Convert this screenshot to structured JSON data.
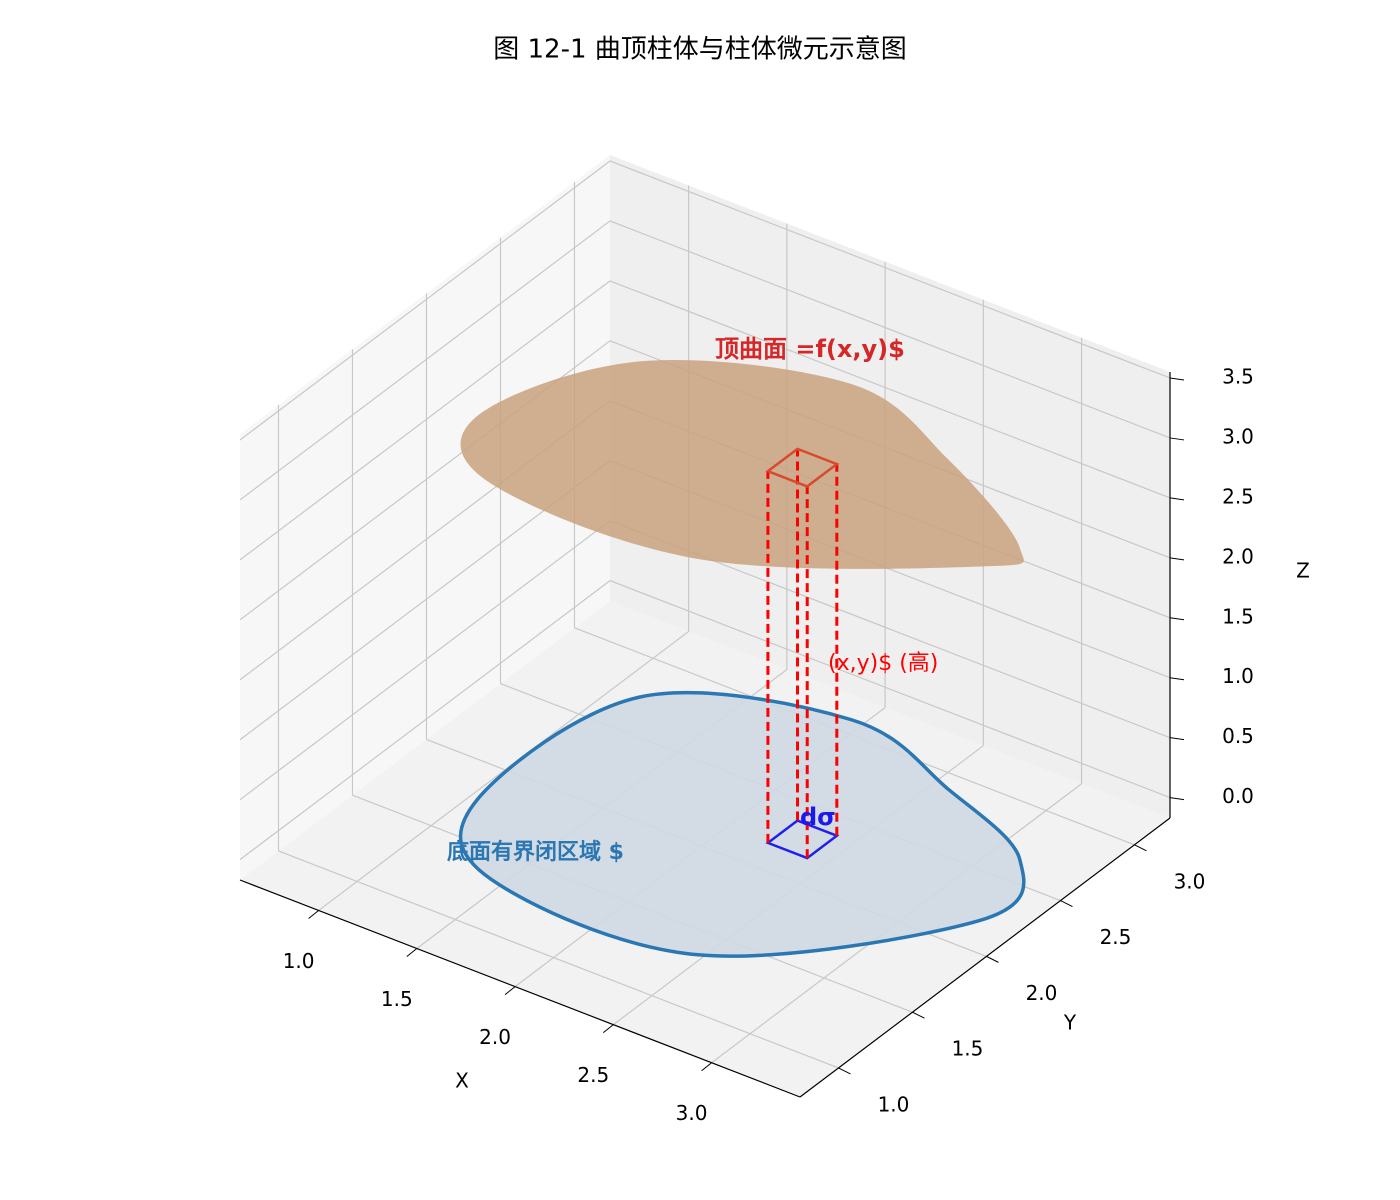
{
  "chart_data": {
    "type": "surface3d",
    "title": "图 12-1 曲顶柱体与柱体微元示意图",
    "xlabel": "X",
    "ylabel": "Y",
    "zlabel": "Z",
    "xlim": [
      0.6,
      3.45
    ],
    "ylim": [
      0.74,
      3.24
    ],
    "zlim": [
      -0.17,
      3.55
    ],
    "xticks": [
      {
        "value": 1,
        "label": "1.0"
      },
      {
        "value": 1.5,
        "label": "1.5"
      },
      {
        "value": 2,
        "label": "2.0"
      },
      {
        "value": 2.5,
        "label": "2.5"
      },
      {
        "value": 3,
        "label": "3.0"
      }
    ],
    "yticks": [
      {
        "value": 1,
        "label": "1.0"
      },
      {
        "value": 1.5,
        "label": "1.5"
      },
      {
        "value": 2,
        "label": "2.0"
      },
      {
        "value": 2.5,
        "label": "2.5"
      },
      {
        "value": 3,
        "label": "3.0"
      }
    ],
    "zticks": [
      {
        "value": 0,
        "label": "0.0"
      },
      {
        "value": 0.5,
        "label": "0.5"
      },
      {
        "value": 1,
        "label": "1.0"
      },
      {
        "value": 1.5,
        "label": "1.5"
      },
      {
        "value": 2,
        "label": "2.0"
      },
      {
        "value": 2.5,
        "label": "2.5"
      },
      {
        "value": 3,
        "label": "3.0"
      },
      {
        "value": 3.5,
        "label": "3.5"
      }
    ],
    "grid": true,
    "boundary": {
      "x": [
        1.13,
        1.53,
        2.57,
        3.36,
        3.22,
        2.67,
        2.03,
        1.22
      ],
      "y": [
        1.64,
        1.2,
        1.23,
        2.08,
        2.53,
        2.78,
        2.97,
        2.62
      ],
      "color": "#2a77b4",
      "fill": "#cfd8e2"
    },
    "surface_z": [
      3.2,
      3.3,
      3.3,
      2.95,
      2.6,
      2.75,
      2.8,
      2.8
    ],
    "surface_color": "#c9a27f",
    "element": {
      "x": [
        2.3,
        2.5
      ],
      "y": [
        2.05,
        2.25
      ],
      "z_top": 3.1
    },
    "annotations": [
      "顶曲面 =f(x,y)$",
      "(x,y)$ (高)",
      "dσ",
      "底面有界闭区域 $"
    ]
  }
}
